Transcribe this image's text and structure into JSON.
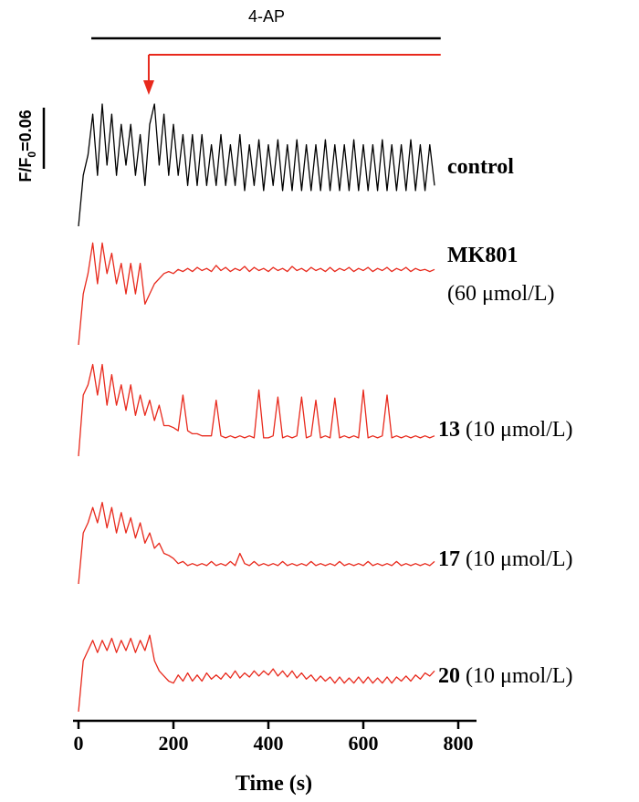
{
  "chart_data": {
    "type": "line",
    "title": "4-AP",
    "xlabel": "Time (s)",
    "xlim": [
      0,
      800
    ],
    "xticks": [
      0,
      200,
      400,
      600,
      800
    ],
    "treatment_bar": {
      "start": 27,
      "end": 763,
      "color": "#000000"
    },
    "compound_bar": {
      "start": 148,
      "end": 763,
      "color": "#e8291c"
    },
    "scale_bar": {
      "value": 0.06,
      "label_parts": [
        "F/F",
        "0",
        "=0.06"
      ]
    },
    "x": [
      0,
      10,
      20,
      30,
      40,
      50,
      60,
      70,
      80,
      90,
      100,
      110,
      120,
      130,
      140,
      150,
      160,
      170,
      180,
      190,
      200,
      210,
      220,
      230,
      240,
      250,
      260,
      270,
      280,
      290,
      300,
      310,
      320,
      330,
      340,
      350,
      360,
      370,
      380,
      390,
      400,
      410,
      420,
      430,
      440,
      450,
      460,
      470,
      480,
      490,
      500,
      510,
      520,
      530,
      540,
      550,
      560,
      570,
      580,
      590,
      600,
      610,
      620,
      630,
      640,
      650,
      660,
      670,
      680,
      690,
      700,
      710,
      720,
      730,
      740,
      750
    ],
    "series": [
      {
        "name": "control",
        "color": "#000000",
        "values": [
          0,
          0.05,
          0.07,
          0.11,
          0.05,
          0.12,
          0.06,
          0.11,
          0.05,
          0.1,
          0.06,
          0.1,
          0.05,
          0.09,
          0.04,
          0.1,
          0.12,
          0.06,
          0.11,
          0.05,
          0.1,
          0.05,
          0.09,
          0.04,
          0.09,
          0.04,
          0.09,
          0.04,
          0.08,
          0.04,
          0.09,
          0.04,
          0.08,
          0.04,
          0.09,
          0.035,
          0.08,
          0.04,
          0.085,
          0.035,
          0.08,
          0.04,
          0.085,
          0.035,
          0.08,
          0.035,
          0.085,
          0.035,
          0.08,
          0.035,
          0.08,
          0.035,
          0.085,
          0.035,
          0.08,
          0.035,
          0.08,
          0.035,
          0.085,
          0.035,
          0.08,
          0.035,
          0.08,
          0.035,
          0.085,
          0.035,
          0.08,
          0.035,
          0.08,
          0.035,
          0.085,
          0.035,
          0.08,
          0.035,
          0.08,
          0.04
        ]
      },
      {
        "name": "MK801",
        "dose": "(60 μmol/L)",
        "color": "#e8291c",
        "values": [
          0,
          0.05,
          0.07,
          0.1,
          0.06,
          0.1,
          0.07,
          0.09,
          0.06,
          0.08,
          0.05,
          0.08,
          0.05,
          0.08,
          0.04,
          0.05,
          0.06,
          0.065,
          0.07,
          0.072,
          0.07,
          0.074,
          0.072,
          0.075,
          0.072,
          0.076,
          0.073,
          0.075,
          0.072,
          0.078,
          0.073,
          0.076,
          0.072,
          0.075,
          0.073,
          0.077,
          0.072,
          0.076,
          0.073,
          0.075,
          0.072,
          0.076,
          0.073,
          0.075,
          0.072,
          0.077,
          0.073,
          0.075,
          0.072,
          0.076,
          0.073,
          0.075,
          0.072,
          0.076,
          0.072,
          0.075,
          0.073,
          0.076,
          0.072,
          0.075,
          0.073,
          0.076,
          0.072,
          0.075,
          0.073,
          0.076,
          0.072,
          0.075,
          0.073,
          0.076,
          0.072,
          0.075,
          0.073,
          0.074,
          0.072,
          0.074
        ]
      },
      {
        "name": "13",
        "dose": "(10 μmol/L)",
        "color": "#e8291c",
        "values": [
          0,
          0.06,
          0.07,
          0.09,
          0.06,
          0.09,
          0.05,
          0.08,
          0.05,
          0.07,
          0.045,
          0.07,
          0.04,
          0.06,
          0.04,
          0.055,
          0.035,
          0.05,
          0.03,
          0.03,
          0.028,
          0.025,
          0.06,
          0.025,
          0.022,
          0.022,
          0.02,
          0.02,
          0.02,
          0.055,
          0.02,
          0.018,
          0.02,
          0.018,
          0.02,
          0.018,
          0.02,
          0.018,
          0.065,
          0.018,
          0.018,
          0.02,
          0.058,
          0.018,
          0.02,
          0.018,
          0.02,
          0.058,
          0.018,
          0.02,
          0.055,
          0.018,
          0.02,
          0.018,
          0.057,
          0.018,
          0.02,
          0.018,
          0.02,
          0.018,
          0.065,
          0.018,
          0.02,
          0.018,
          0.02,
          0.06,
          0.018,
          0.02,
          0.018,
          0.02,
          0.018,
          0.02,
          0.018,
          0.02,
          0.018,
          0.02
        ]
      },
      {
        "name": "17",
        "dose": "(10 μmol/L)",
        "color": "#e8291c",
        "values": [
          0,
          0.05,
          0.06,
          0.075,
          0.06,
          0.08,
          0.055,
          0.075,
          0.05,
          0.07,
          0.05,
          0.065,
          0.045,
          0.06,
          0.04,
          0.05,
          0.035,
          0.04,
          0.03,
          0.028,
          0.025,
          0.02,
          0.022,
          0.018,
          0.02,
          0.018,
          0.02,
          0.018,
          0.022,
          0.018,
          0.02,
          0.018,
          0.022,
          0.018,
          0.03,
          0.02,
          0.018,
          0.022,
          0.018,
          0.02,
          0.018,
          0.02,
          0.018,
          0.022,
          0.018,
          0.02,
          0.018,
          0.02,
          0.018,
          0.022,
          0.018,
          0.02,
          0.018,
          0.02,
          0.018,
          0.022,
          0.018,
          0.02,
          0.018,
          0.02,
          0.018,
          0.022,
          0.018,
          0.02,
          0.018,
          0.02,
          0.018,
          0.022,
          0.018,
          0.02,
          0.018,
          0.02,
          0.018,
          0.02,
          0.018,
          0.022
        ]
      },
      {
        "name": "20",
        "dose": "(10 μmol/L)",
        "color": "#e8291c",
        "values": [
          0,
          0.05,
          0.06,
          0.07,
          0.058,
          0.07,
          0.06,
          0.072,
          0.058,
          0.07,
          0.06,
          0.072,
          0.058,
          0.07,
          0.06,
          0.075,
          0.05,
          0.04,
          0.035,
          0.03,
          0.028,
          0.036,
          0.03,
          0.038,
          0.03,
          0.036,
          0.03,
          0.038,
          0.032,
          0.036,
          0.032,
          0.038,
          0.033,
          0.04,
          0.033,
          0.038,
          0.034,
          0.04,
          0.035,
          0.04,
          0.036,
          0.042,
          0.035,
          0.04,
          0.034,
          0.04,
          0.033,
          0.038,
          0.032,
          0.036,
          0.03,
          0.035,
          0.03,
          0.034,
          0.028,
          0.034,
          0.028,
          0.033,
          0.028,
          0.034,
          0.028,
          0.034,
          0.028,
          0.033,
          0.028,
          0.034,
          0.028,
          0.034,
          0.03,
          0.035,
          0.03,
          0.036,
          0.032,
          0.038,
          0.035,
          0.04
        ]
      }
    ]
  }
}
